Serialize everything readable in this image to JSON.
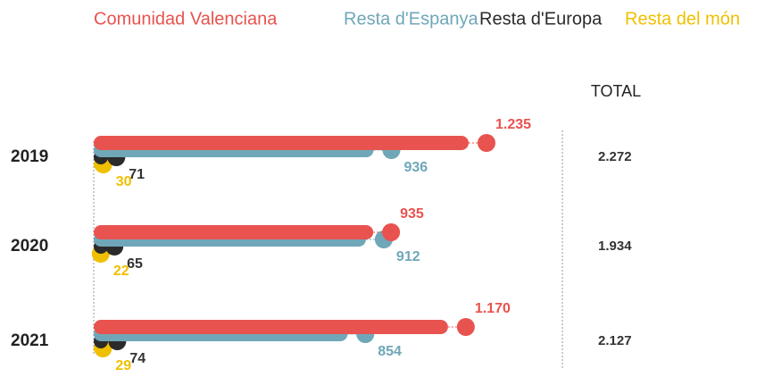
{
  "chart_data": {
    "type": "lollipop-bar",
    "categories": [
      "2019",
      "2020",
      "2021"
    ],
    "series": [
      {
        "name": "Comunidad Valenciana",
        "color": "#e8534f",
        "values": [
          1235,
          935,
          1170
        ],
        "value_labels": [
          "1.235",
          "935",
          "1.170"
        ]
      },
      {
        "name": "Resta d'Espanya",
        "color": "#6fa7b8",
        "values": [
          936,
          912,
          854
        ],
        "value_labels": [
          "936",
          "912",
          "854"
        ]
      },
      {
        "name": "Resta d'Europa",
        "color": "#2b2b2b",
        "values": [
          71,
          65,
          74
        ],
        "value_labels": [
          "71",
          "65",
          "74"
        ]
      },
      {
        "name": "Resta del món",
        "color": "#f0c000",
        "values": [
          30,
          22,
          29
        ],
        "value_labels": [
          "30",
          "22",
          "29"
        ]
      }
    ],
    "total_title": "TOTAL",
    "totals": [
      2272,
      1934,
      2127
    ],
    "total_labels": [
      "2.272",
      "1.934",
      "2.127"
    ]
  }
}
